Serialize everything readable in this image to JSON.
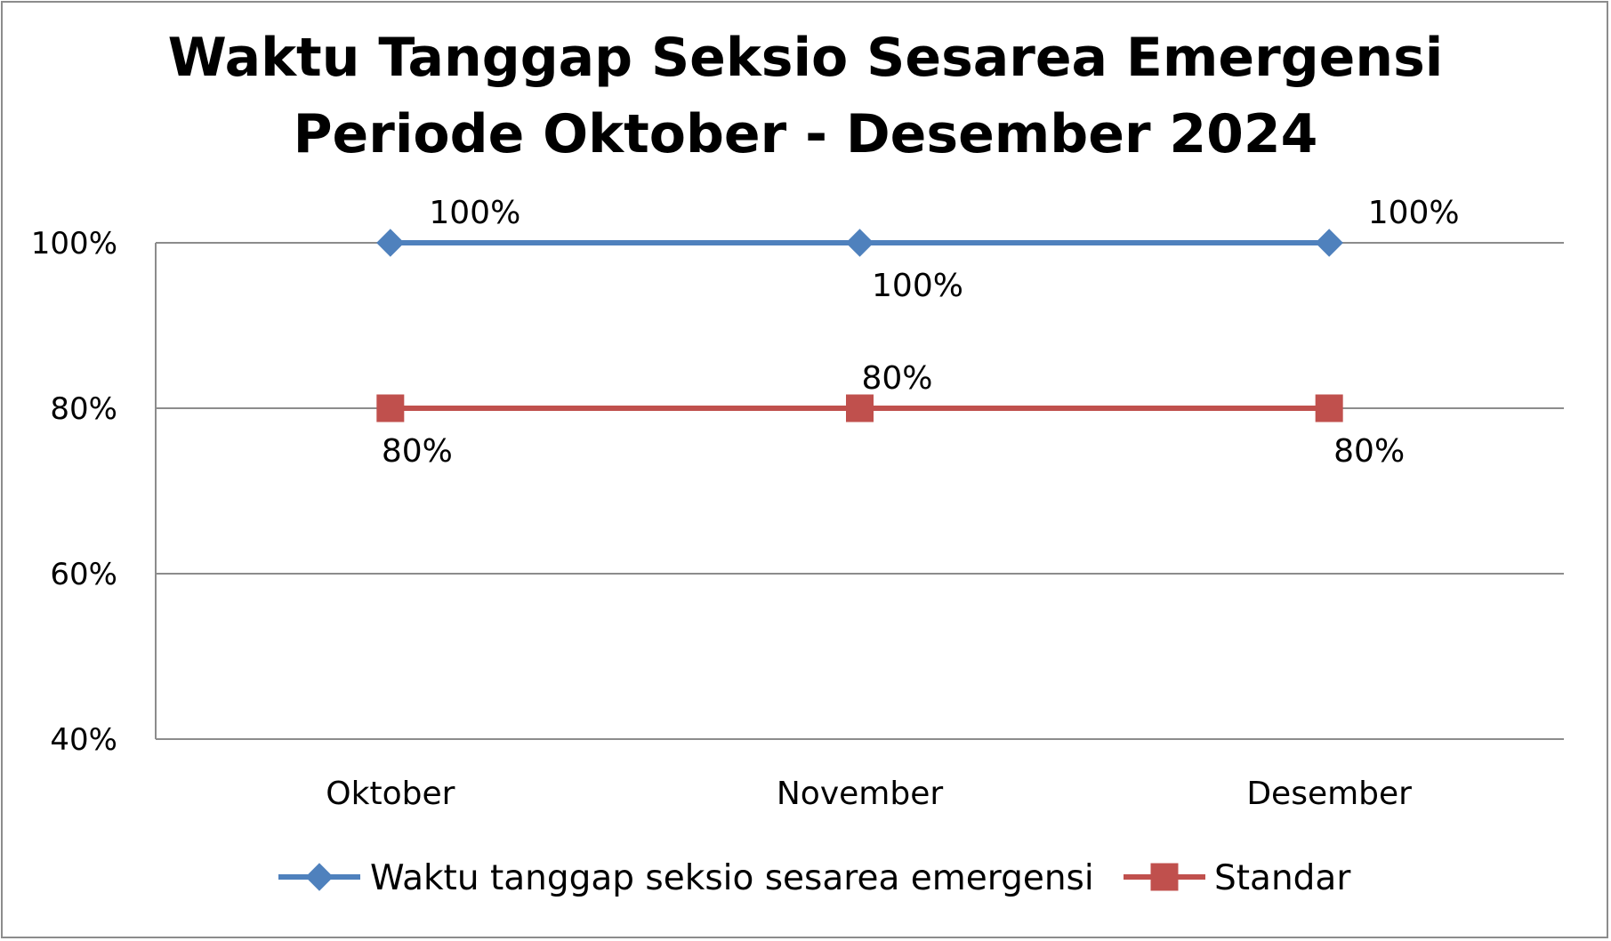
{
  "chart_data": {
    "type": "line",
    "title": [
      "Waktu Tanggap Seksio Sesarea Emergensi",
      "Periode Oktober - Desember 2024"
    ],
    "categories": [
      "Oktober",
      "November",
      "Desember"
    ],
    "y_ticks": [
      "40%",
      "60%",
      "80%",
      "100%"
    ],
    "ylim": [
      40,
      100
    ],
    "grid": true,
    "legend_position": "bottom",
    "series": [
      {
        "name": "Waktu tanggap seksio sesarea emergensi",
        "values": [
          100,
          100,
          100
        ],
        "labels": [
          "100%",
          "100%",
          "100%"
        ],
        "label_positions": [
          "above",
          "below",
          "above"
        ],
        "color": "#4f81bd",
        "marker": "diamond"
      },
      {
        "name": "Standar",
        "values": [
          80,
          80,
          80
        ],
        "labels": [
          "80%",
          "80%",
          "80%"
        ],
        "label_positions": [
          "below",
          "above",
          "below"
        ],
        "color": "#c0504d",
        "marker": "square"
      }
    ]
  }
}
